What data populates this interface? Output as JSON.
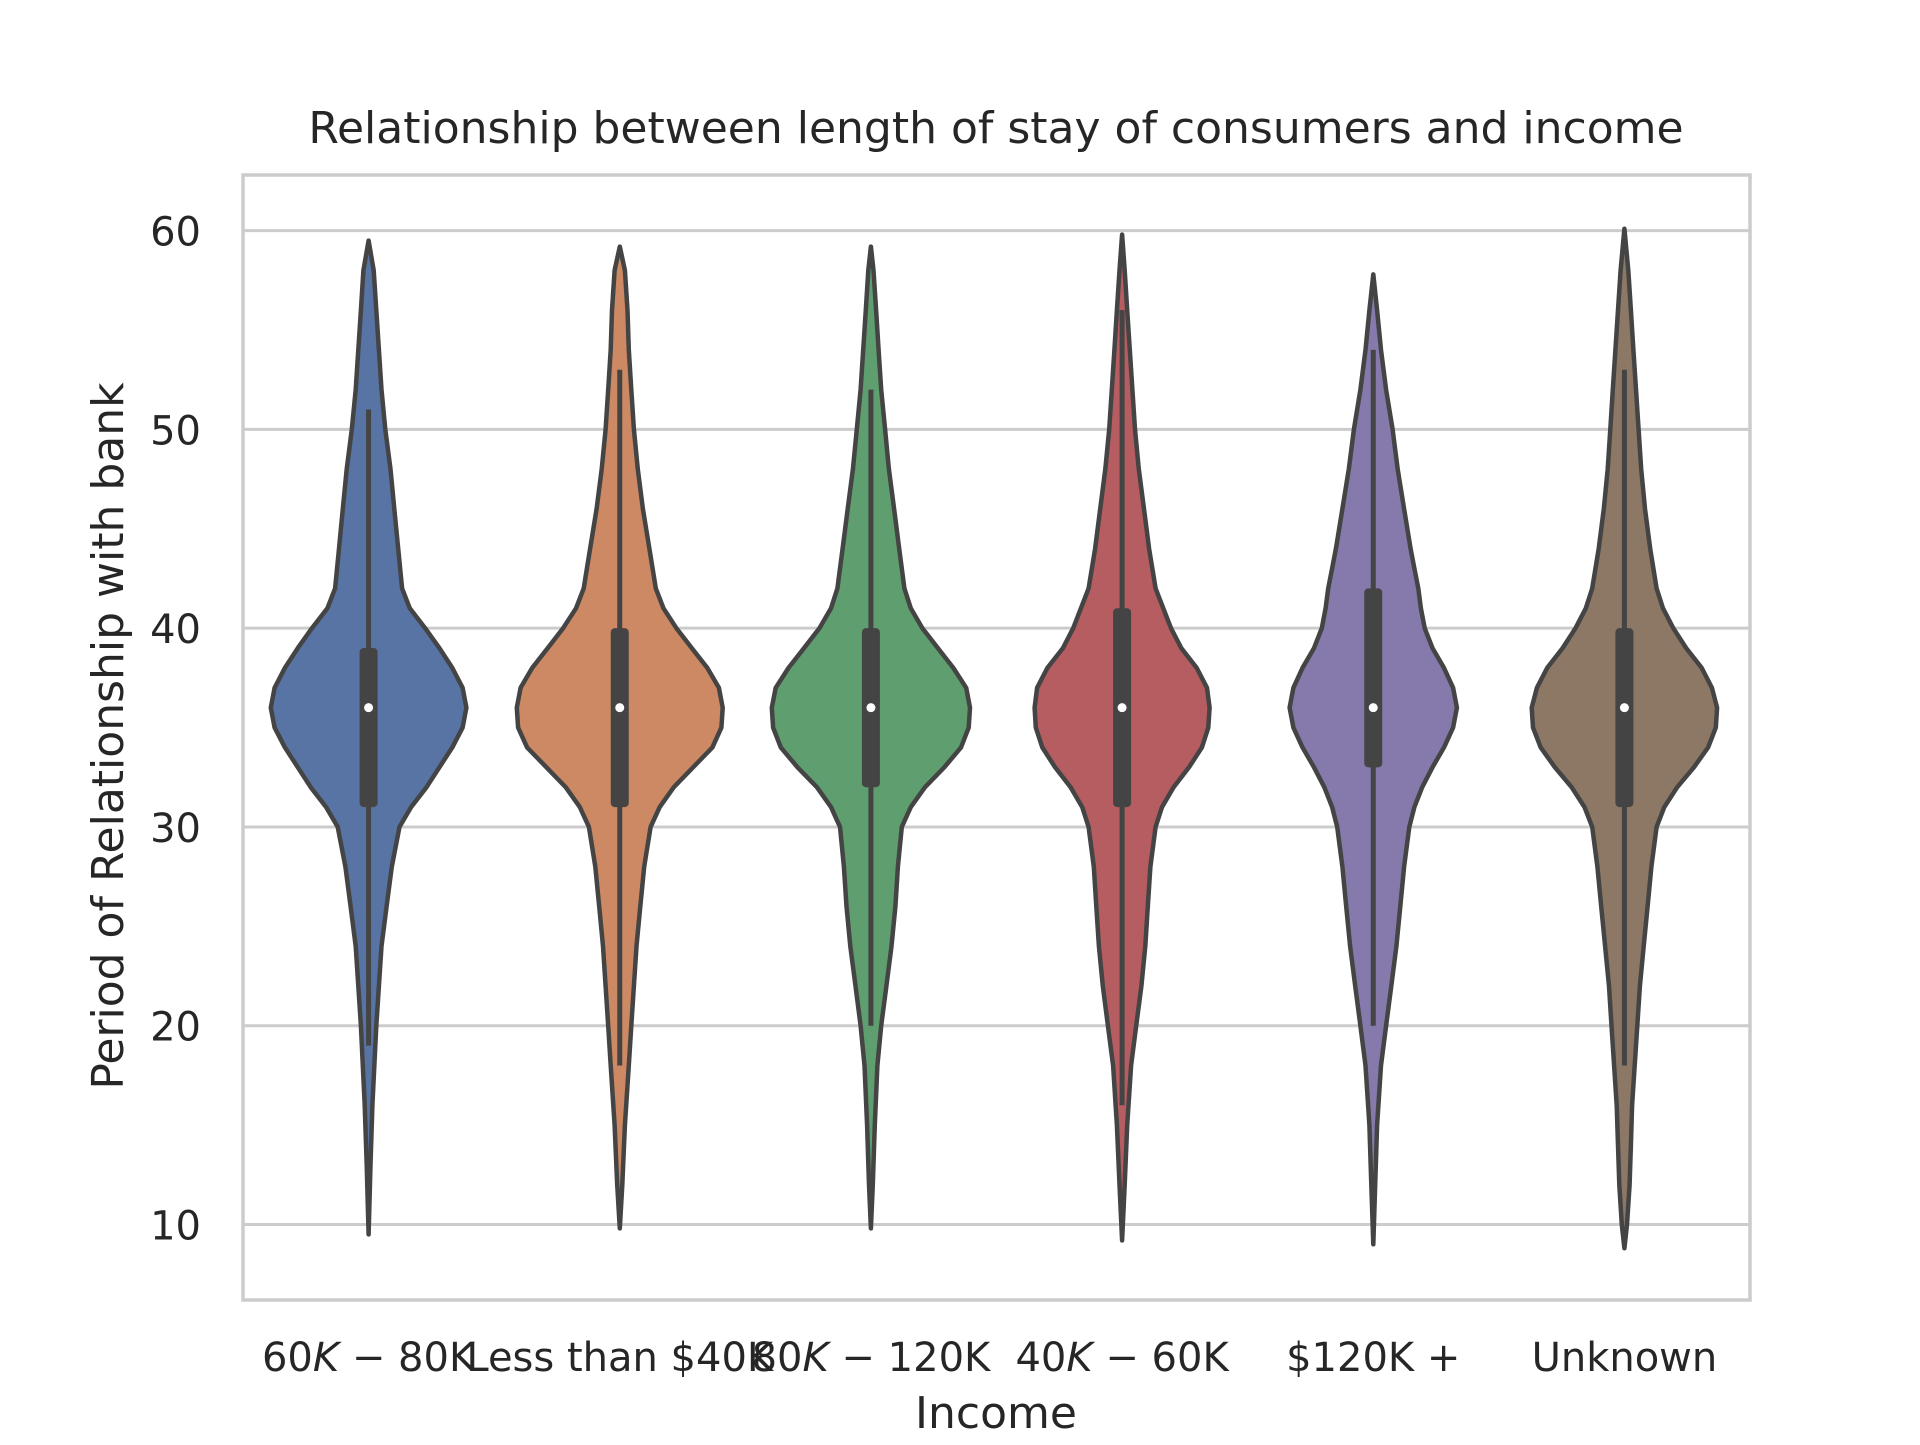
{
  "chart_data": {
    "type": "violin",
    "title": "Relationship between length of stay of consumers and income",
    "xlabel": "Income",
    "ylabel": "Period of Relationship with bank",
    "ylim": [
      6.2,
      62.8
    ],
    "yticks": [
      10,
      20,
      30,
      40,
      50,
      60
    ],
    "grid": true,
    "categories": [
      {
        "label_parts": [
          "60",
          "K",
          " − 80K"
        ],
        "color": "#5874a5",
        "median": 36,
        "q1": 31,
        "q3": 39,
        "whisker_low": 19,
        "whisker_high": 51,
        "min": 9.5,
        "max": 59.5,
        "profile": [
          [
            9.5,
            0
          ],
          [
            13,
            1.5
          ],
          [
            16,
            3
          ],
          [
            20,
            6
          ],
          [
            22,
            8
          ],
          [
            24,
            10
          ],
          [
            26,
            14
          ],
          [
            28,
            18
          ],
          [
            30,
            24
          ],
          [
            31,
            33
          ],
          [
            32,
            45
          ],
          [
            33,
            55
          ],
          [
            34,
            65
          ],
          [
            35,
            73
          ],
          [
            36,
            76
          ],
          [
            37,
            73
          ],
          [
            38,
            65
          ],
          [
            39,
            55
          ],
          [
            40,
            44
          ],
          [
            41,
            32
          ],
          [
            42,
            26
          ],
          [
            44,
            23
          ],
          [
            46,
            20
          ],
          [
            48,
            17
          ],
          [
            50,
            13
          ],
          [
            52,
            10
          ],
          [
            54,
            8
          ],
          [
            56,
            6
          ],
          [
            58,
            4
          ],
          [
            59.5,
            0
          ]
        ]
      },
      {
        "label_parts": [
          "Less than $40K"
        ],
        "color": "#cc8963",
        "median": 36,
        "q1": 31,
        "q3": 40,
        "whisker_low": 18,
        "whisker_high": 53,
        "min": 9.8,
        "max": 59.2,
        "profile": [
          [
            9.8,
            0
          ],
          [
            12,
            2
          ],
          [
            15,
            4
          ],
          [
            18,
            7
          ],
          [
            20,
            9
          ],
          [
            22,
            11
          ],
          [
            24,
            13
          ],
          [
            26,
            16
          ],
          [
            28,
            19
          ],
          [
            30,
            24
          ],
          [
            31,
            31
          ],
          [
            32,
            42
          ],
          [
            33,
            57
          ],
          [
            34,
            72
          ],
          [
            35,
            79
          ],
          [
            36,
            80
          ],
          [
            37,
            77
          ],
          [
            38,
            68
          ],
          [
            39,
            56
          ],
          [
            40,
            44
          ],
          [
            41,
            34
          ],
          [
            42,
            28
          ],
          [
            44,
            23
          ],
          [
            46,
            18
          ],
          [
            48,
            14
          ],
          [
            50,
            11
          ],
          [
            52,
            9
          ],
          [
            54,
            7
          ],
          [
            56,
            6
          ],
          [
            58,
            4
          ],
          [
            59.2,
            0
          ]
        ]
      },
      {
        "label_parts": [
          "80",
          "K",
          " − 120K"
        ],
        "color": "#5f9e6e",
        "median": 36,
        "q1": 32,
        "q3": 40,
        "whisker_low": 20,
        "whisker_high": 52,
        "min": 9.8,
        "max": 59.2,
        "profile": [
          [
            9.8,
            0
          ],
          [
            12,
            1.5
          ],
          [
            15,
            3
          ],
          [
            18,
            5
          ],
          [
            20,
            8
          ],
          [
            22,
            12
          ],
          [
            24,
            16
          ],
          [
            26,
            19
          ],
          [
            28,
            21
          ],
          [
            30,
            24
          ],
          [
            31,
            31
          ],
          [
            32,
            42
          ],
          [
            33,
            57
          ],
          [
            34,
            70
          ],
          [
            35,
            76
          ],
          [
            36,
            77
          ],
          [
            37,
            74
          ],
          [
            38,
            64
          ],
          [
            39,
            52
          ],
          [
            40,
            40
          ],
          [
            41,
            31
          ],
          [
            42,
            26
          ],
          [
            44,
            22
          ],
          [
            46,
            18
          ],
          [
            48,
            14
          ],
          [
            50,
            11
          ],
          [
            52,
            8
          ],
          [
            54,
            6
          ],
          [
            56,
            4
          ],
          [
            58,
            2
          ],
          [
            59.2,
            0
          ]
        ]
      },
      {
        "label_parts": [
          "40",
          "K",
          " − 60K"
        ],
        "color": "#b55d60",
        "median": 36,
        "q1": 31,
        "q3": 41,
        "whisker_low": 16,
        "whisker_high": 56,
        "min": 9.2,
        "max": 59.8,
        "profile": [
          [
            9.2,
            0
          ],
          [
            12,
            2
          ],
          [
            15,
            4
          ],
          [
            18,
            7
          ],
          [
            20,
            11
          ],
          [
            22,
            15
          ],
          [
            24,
            18
          ],
          [
            26,
            20
          ],
          [
            28,
            22
          ],
          [
            30,
            26
          ],
          [
            31,
            31
          ],
          [
            32,
            40
          ],
          [
            33,
            52
          ],
          [
            34,
            62
          ],
          [
            35,
            67
          ],
          [
            36,
            68
          ],
          [
            37,
            66
          ],
          [
            38,
            58
          ],
          [
            39,
            46
          ],
          [
            40,
            38
          ],
          [
            41,
            32
          ],
          [
            42,
            26
          ],
          [
            44,
            21
          ],
          [
            46,
            17
          ],
          [
            48,
            13
          ],
          [
            50,
            10
          ],
          [
            52,
            8
          ],
          [
            54,
            6
          ],
          [
            56,
            4
          ],
          [
            58,
            2
          ],
          [
            59.8,
            0
          ]
        ]
      },
      {
        "label_parts": [
          "$120K +"
        ],
        "color": "#857aab",
        "median": 36,
        "q1": 33,
        "q3": 42,
        "whisker_low": 20,
        "whisker_high": 54,
        "min": 9.0,
        "max": 57.8,
        "profile": [
          [
            9,
            0
          ],
          [
            12,
            1.5
          ],
          [
            15,
            3
          ],
          [
            18,
            6
          ],
          [
            20,
            10
          ],
          [
            22,
            14
          ],
          [
            24,
            18
          ],
          [
            26,
            21
          ],
          [
            28,
            24
          ],
          [
            30,
            28
          ],
          [
            31,
            32
          ],
          [
            32,
            38
          ],
          [
            33,
            46
          ],
          [
            34,
            55
          ],
          [
            35,
            62
          ],
          [
            36,
            65
          ],
          [
            37,
            62
          ],
          [
            38,
            55
          ],
          [
            39,
            46
          ],
          [
            40,
            40
          ],
          [
            41,
            37
          ],
          [
            42,
            35
          ],
          [
            43,
            32
          ],
          [
            44,
            29
          ],
          [
            46,
            24
          ],
          [
            48,
            19
          ],
          [
            50,
            15
          ],
          [
            52,
            10
          ],
          [
            54,
            6
          ],
          [
            56,
            3
          ],
          [
            57.8,
            0
          ]
        ]
      },
      {
        "label_parts": [
          "Unknown"
        ],
        "color": "#8d7866",
        "median": 36,
        "q1": 31,
        "q3": 40,
        "whisker_low": 18,
        "whisker_high": 53,
        "min": 8.8,
        "max": 60.1,
        "profile": [
          [
            8.8,
            0
          ],
          [
            10,
            2
          ],
          [
            12,
            4
          ],
          [
            14,
            5
          ],
          [
            16,
            6
          ],
          [
            18,
            8
          ],
          [
            20,
            10
          ],
          [
            22,
            12
          ],
          [
            24,
            15
          ],
          [
            26,
            18
          ],
          [
            28,
            21
          ],
          [
            30,
            25
          ],
          [
            31,
            31
          ],
          [
            32,
            41
          ],
          [
            33,
            54
          ],
          [
            34,
            65
          ],
          [
            35,
            71
          ],
          [
            36,
            72
          ],
          [
            37,
            68
          ],
          [
            38,
            60
          ],
          [
            39,
            48
          ],
          [
            40,
            38
          ],
          [
            41,
            30
          ],
          [
            42,
            25
          ],
          [
            44,
            20
          ],
          [
            46,
            16
          ],
          [
            48,
            13
          ],
          [
            50,
            11
          ],
          [
            52,
            9
          ],
          [
            54,
            7
          ],
          [
            56,
            5
          ],
          [
            58,
            3
          ],
          [
            60.1,
            0
          ]
        ]
      }
    ]
  }
}
